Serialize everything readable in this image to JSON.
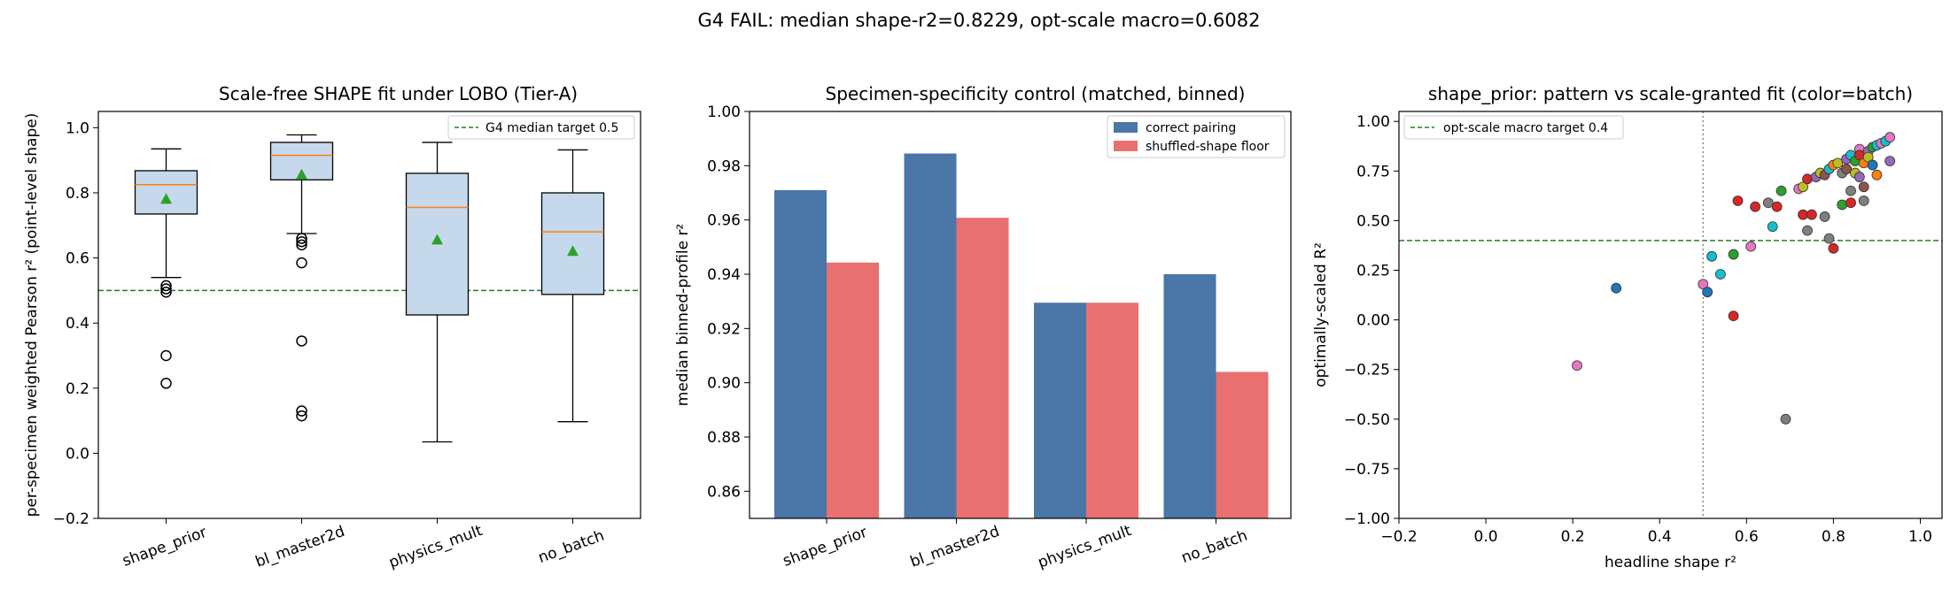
{
  "suptitle": "G4 FAIL: median shape-r2=0.8229, opt-scale macro=0.6082",
  "chart_data": [
    {
      "type": "box",
      "title": "Scale-free SHAPE fit under LOBO (Tier-A)",
      "ylabel": "per-specimen weighted Pearson r² (point-level shape)",
      "xlabel": "",
      "ylim": [
        -0.2,
        1.05
      ],
      "yticks": [
        -0.2,
        0.0,
        0.2,
        0.4,
        0.6,
        0.8,
        1.0
      ],
      "ytick_labels": [
        "−0.2",
        "0.0",
        "0.2",
        "0.4",
        "0.6",
        "0.8",
        "1.0"
      ],
      "categories": [
        "shape_prior",
        "bl_master2d",
        "physics_mult",
        "no_batch"
      ],
      "boxes": [
        {
          "q1": 0.735,
          "median": 0.825,
          "q3": 0.868,
          "whislo": 0.54,
          "whishi": 0.935,
          "mean": 0.78,
          "fliers": [
            0.515,
            0.505,
            0.495,
            0.3,
            0.215
          ]
        },
        {
          "q1": 0.84,
          "median": 0.915,
          "q3": 0.955,
          "whislo": 0.675,
          "whishi": 0.978,
          "mean": 0.855,
          "fliers": [
            0.66,
            0.65,
            0.64,
            0.585,
            0.345,
            0.13,
            0.115
          ]
        },
        {
          "q1": 0.425,
          "median": 0.755,
          "q3": 0.86,
          "whislo": 0.035,
          "whishi": 0.955,
          "mean": 0.655,
          "fliers": []
        },
        {
          "q1": 0.488,
          "median": 0.68,
          "q3": 0.8,
          "whislo": 0.097,
          "whishi": 0.932,
          "mean": 0.62,
          "fliers": []
        }
      ],
      "reference_line": {
        "value": 0.5,
        "label": "G4 median target 0.5"
      },
      "legend_loc": "upper right",
      "colors": {
        "box_fill": "#c6d9ec",
        "median": "#ff7f0e",
        "mean": "#2ca02c",
        "refline": "#2a7a2a"
      }
    },
    {
      "type": "bar",
      "title": "Specimen-specificity control (matched, binned)",
      "ylabel": "median binned-profile r²",
      "xlabel": "",
      "ylim": [
        0.85,
        1.0
      ],
      "yticks": [
        0.86,
        0.88,
        0.9,
        0.92,
        0.94,
        0.96,
        0.98,
        1.0
      ],
      "ytick_labels": [
        "0.86",
        "0.88",
        "0.90",
        "0.92",
        "0.94",
        "0.96",
        "0.98",
        "1.00"
      ],
      "categories": [
        "shape_prior",
        "bl_master2d",
        "physics_mult",
        "no_batch"
      ],
      "series": [
        {
          "name": "correct pairing",
          "values": [
            0.971,
            0.9845,
            0.9295,
            0.94
          ],
          "color": "#4a76a8"
        },
        {
          "name": "shuffled-shape floor",
          "values": [
            0.9443,
            0.9608,
            0.9295,
            0.904
          ],
          "color": "#e87070"
        }
      ],
      "legend_loc": "upper right"
    },
    {
      "type": "scatter",
      "title": "shape_prior: pattern vs scale-granted fit (color=batch)",
      "xlabel": "headline shape r²",
      "ylabel": "optimally-scaled R²",
      "xlim": [
        -0.2,
        1.05
      ],
      "ylim": [
        -1.0,
        1.05
      ],
      "xticks": [
        -0.2,
        0.0,
        0.2,
        0.4,
        0.6,
        0.8,
        1.0
      ],
      "xtick_labels": [
        "−0.2",
        "0.0",
        "0.2",
        "0.4",
        "0.6",
        "0.8",
        "1.0"
      ],
      "yticks": [
        -1.0,
        -0.75,
        -0.5,
        -0.25,
        0.0,
        0.25,
        0.5,
        0.75,
        1.0
      ],
      "ytick_labels": [
        "−1.00",
        "−0.75",
        "−0.50",
        "−0.25",
        "0.00",
        "0.25",
        "0.50",
        "0.75",
        "1.00"
      ],
      "hline": {
        "value": 0.4,
        "label": "opt-scale macro target 0.4"
      },
      "vline": {
        "value": 0.5
      },
      "legend_loc": "upper left",
      "points": [
        {
          "x": 0.3,
          "y": 0.16,
          "c": "#1f77b4"
        },
        {
          "x": 0.21,
          "y": -0.23,
          "c": "#e377c2"
        },
        {
          "x": 0.5,
          "y": 0.18,
          "c": "#e377c2"
        },
        {
          "x": 0.51,
          "y": 0.14,
          "c": "#1f77b4"
        },
        {
          "x": 0.52,
          "y": 0.32,
          "c": "#17becf"
        },
        {
          "x": 0.54,
          "y": 0.23,
          "c": "#17becf"
        },
        {
          "x": 0.57,
          "y": 0.02,
          "c": "#d62728"
        },
        {
          "x": 0.57,
          "y": 0.33,
          "c": "#2ca02c"
        },
        {
          "x": 0.58,
          "y": 0.6,
          "c": "#d62728"
        },
        {
          "x": 0.61,
          "y": 0.37,
          "c": "#e377c2"
        },
        {
          "x": 0.62,
          "y": 0.57,
          "c": "#d62728"
        },
        {
          "x": 0.65,
          "y": 0.59,
          "c": "#7f7f7f"
        },
        {
          "x": 0.66,
          "y": 0.47,
          "c": "#17becf"
        },
        {
          "x": 0.67,
          "y": 0.57,
          "c": "#d62728"
        },
        {
          "x": 0.68,
          "y": 0.65,
          "c": "#2ca02c"
        },
        {
          "x": 0.69,
          "y": -0.5,
          "c": "#7f7f7f"
        },
        {
          "x": 0.72,
          "y": 0.66,
          "c": "#e377c2"
        },
        {
          "x": 0.73,
          "y": 0.53,
          "c": "#d62728"
        },
        {
          "x": 0.73,
          "y": 0.67,
          "c": "#bcbd22"
        },
        {
          "x": 0.74,
          "y": 0.71,
          "c": "#d62728"
        },
        {
          "x": 0.74,
          "y": 0.45,
          "c": "#7f7f7f"
        },
        {
          "x": 0.75,
          "y": 0.53,
          "c": "#d62728"
        },
        {
          "x": 0.76,
          "y": 0.72,
          "c": "#9467bd"
        },
        {
          "x": 0.77,
          "y": 0.74,
          "c": "#bcbd22"
        },
        {
          "x": 0.78,
          "y": 0.52,
          "c": "#7f7f7f"
        },
        {
          "x": 0.78,
          "y": 0.73,
          "c": "#8c564b"
        },
        {
          "x": 0.79,
          "y": 0.76,
          "c": "#17becf"
        },
        {
          "x": 0.79,
          "y": 0.41,
          "c": "#7f7f7f"
        },
        {
          "x": 0.8,
          "y": 0.36,
          "c": "#d62728"
        },
        {
          "x": 0.8,
          "y": 0.78,
          "c": "#ff7f0e"
        },
        {
          "x": 0.81,
          "y": 0.79,
          "c": "#bcbd22"
        },
        {
          "x": 0.82,
          "y": 0.74,
          "c": "#7f7f7f"
        },
        {
          "x": 0.82,
          "y": 0.58,
          "c": "#2ca02c"
        },
        {
          "x": 0.83,
          "y": 0.81,
          "c": "#9467bd"
        },
        {
          "x": 0.83,
          "y": 0.76,
          "c": "#8c564b"
        },
        {
          "x": 0.84,
          "y": 0.83,
          "c": "#17becf"
        },
        {
          "x": 0.84,
          "y": 0.65,
          "c": "#7f7f7f"
        },
        {
          "x": 0.84,
          "y": 0.59,
          "c": "#d62728"
        },
        {
          "x": 0.85,
          "y": 0.74,
          "c": "#bcbd22"
        },
        {
          "x": 0.85,
          "y": 0.8,
          "c": "#2ca02c"
        },
        {
          "x": 0.86,
          "y": 0.86,
          "c": "#e377c2"
        },
        {
          "x": 0.86,
          "y": 0.83,
          "c": "#d62728"
        },
        {
          "x": 0.86,
          "y": 0.72,
          "c": "#9467bd"
        },
        {
          "x": 0.87,
          "y": 0.79,
          "c": "#ff7f0e"
        },
        {
          "x": 0.87,
          "y": 0.67,
          "c": "#8c564b"
        },
        {
          "x": 0.87,
          "y": 0.6,
          "c": "#7f7f7f"
        },
        {
          "x": 0.88,
          "y": 0.85,
          "c": "#9467bd"
        },
        {
          "x": 0.88,
          "y": 0.82,
          "c": "#bcbd22"
        },
        {
          "x": 0.89,
          "y": 0.87,
          "c": "#2ca02c"
        },
        {
          "x": 0.89,
          "y": 0.78,
          "c": "#1f77b4"
        },
        {
          "x": 0.9,
          "y": 0.88,
          "c": "#17becf"
        },
        {
          "x": 0.9,
          "y": 0.73,
          "c": "#ff7f0e"
        },
        {
          "x": 0.91,
          "y": 0.89,
          "c": "#e377c2"
        },
        {
          "x": 0.92,
          "y": 0.9,
          "c": "#17becf"
        },
        {
          "x": 0.93,
          "y": 0.92,
          "c": "#e377c2"
        },
        {
          "x": 0.93,
          "y": 0.8,
          "c": "#9467bd"
        }
      ]
    }
  ]
}
